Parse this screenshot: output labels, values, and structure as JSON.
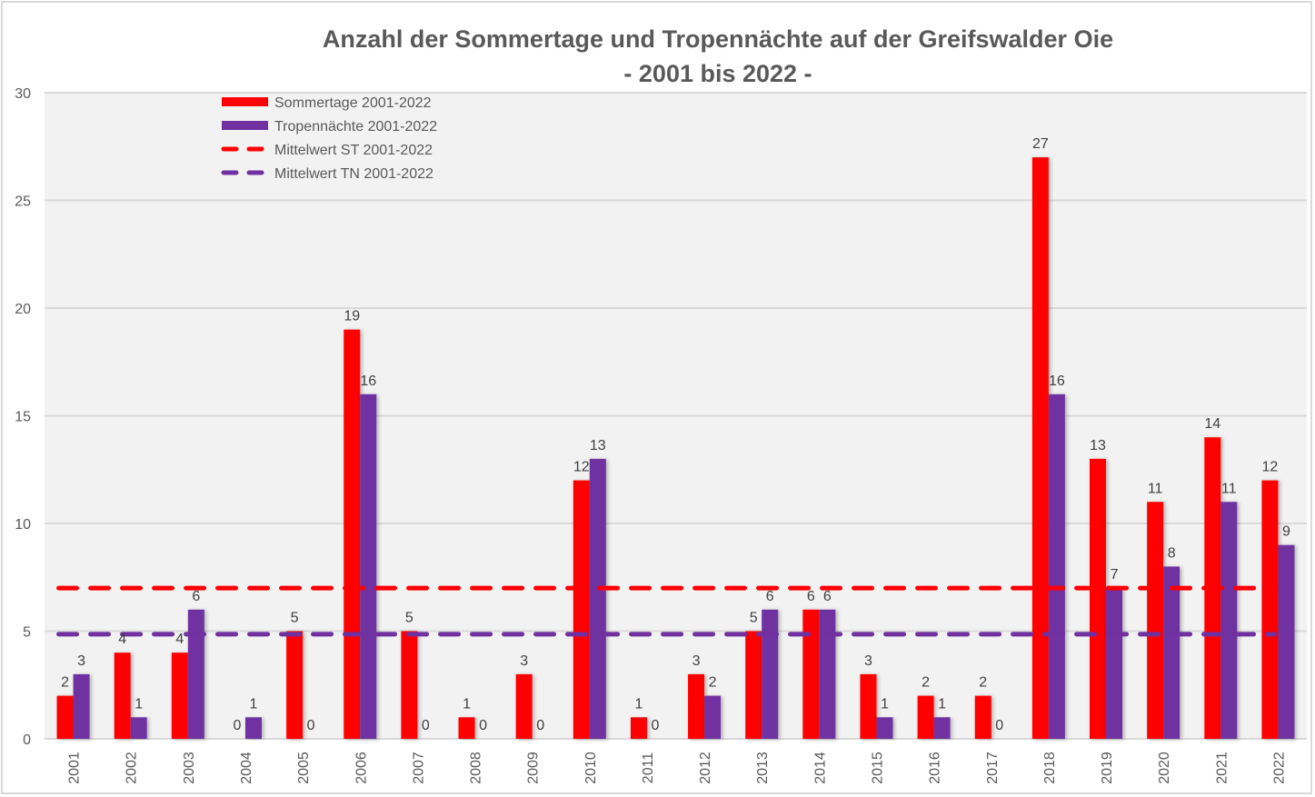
{
  "chart_data": {
    "type": "bar",
    "title": "Anzahl der Sommertage und Tropennächte auf der Greifswalder Oie",
    "subtitle": "- 2001 bis 2022 -",
    "xlabel": "",
    "ylabel": "",
    "ylim": [
      0,
      30
    ],
    "yticks": [
      0,
      5,
      10,
      15,
      20,
      25,
      30
    ],
    "grid": true,
    "legend_position": "top-left",
    "categories": [
      "2001",
      "2002",
      "2003",
      "2004",
      "2005",
      "2006",
      "2007",
      "2008",
      "2009",
      "2010",
      "2011",
      "2012",
      "2013",
      "2014",
      "2015",
      "2016",
      "2017",
      "2018",
      "2019",
      "2020",
      "2021",
      "2022"
    ],
    "series": [
      {
        "name": "Sommertage 2001-2022",
        "kind": "bar",
        "color": "#FF0000",
        "values": [
          2,
          4,
          4,
          0,
          5,
          19,
          5,
          1,
          3,
          12,
          1,
          3,
          5,
          6,
          3,
          2,
          2,
          27,
          13,
          11,
          14,
          12
        ]
      },
      {
        "name": "Tropennächte 2001-2022",
        "kind": "bar",
        "color": "#7030A0",
        "values": [
          3,
          1,
          6,
          1,
          0,
          16,
          0,
          0,
          0,
          13,
          0,
          2,
          6,
          6,
          1,
          1,
          0,
          16,
          7,
          8,
          11,
          9
        ]
      },
      {
        "name": "Mittelwert ST 2001-2022",
        "kind": "dashed-line",
        "color": "#FF0000",
        "value": 7.0
      },
      {
        "name": "Mittelwert TN 2001-2022",
        "kind": "dashed-line",
        "color": "#7030A0",
        "value": 4.86
      }
    ]
  },
  "colors": {
    "plot_background": "#F2F2F2",
    "gridline": "#D9D9D9",
    "text": "#595959"
  }
}
